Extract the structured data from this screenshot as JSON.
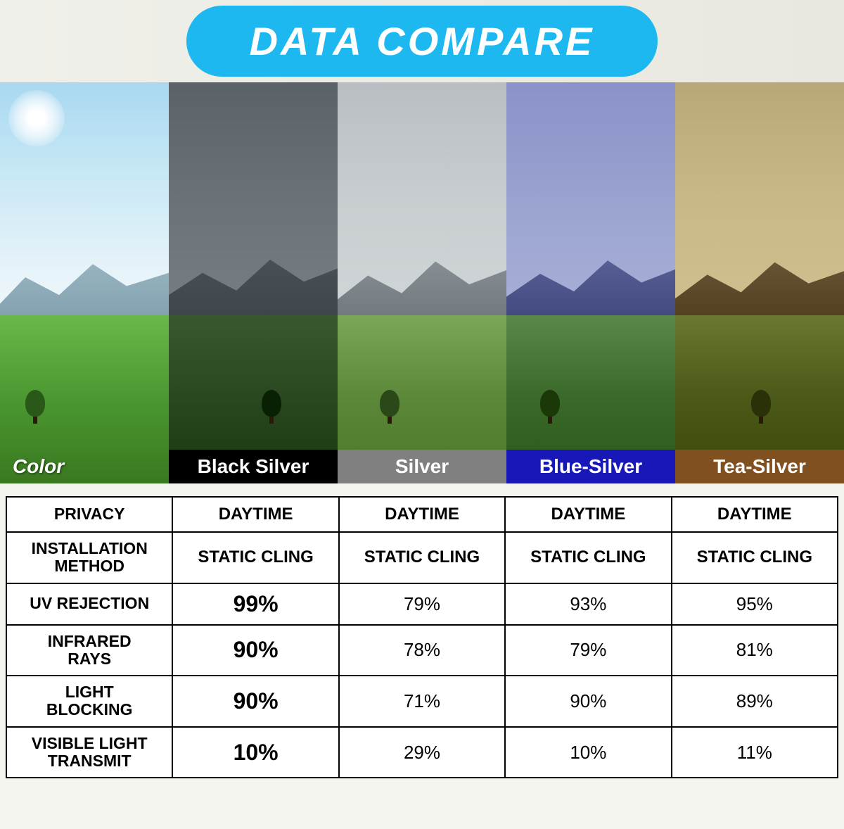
{
  "header": {
    "title": "DATA COMPARE",
    "pill_bg": "#1eb8f0",
    "pill_text_color": "#ffffff"
  },
  "swatches": [
    {
      "label": "Color",
      "label_bg": "transparent",
      "label_text_color": "#ffffff",
      "tint_overlay": "none"
    },
    {
      "label": "Black Silver",
      "label_bg": "#000000",
      "label_text_color": "#ffffff",
      "tint_overlay": "rgba(40,40,40,0.55)"
    },
    {
      "label": "Silver",
      "label_bg": "#808080",
      "label_text_color": "#ffffff",
      "tint_overlay": "rgba(160,160,160,0.35)"
    },
    {
      "label": "Blue-Silver",
      "label_bg": "#1818b8",
      "label_text_color": "#ffffff",
      "tint_overlay": "rgba(60,70,180,0.35)"
    },
    {
      "label": "Tea-Silver",
      "label_bg": "#805020",
      "label_text_color": "#ffffff",
      "tint_overlay": "rgba(150,110,50,0.40)"
    }
  ],
  "table": {
    "rows": [
      {
        "header": "PRIVACY",
        "cells": [
          "DAYTIME",
          "DAYTIME",
          "DAYTIME",
          "DAYTIME"
        ],
        "bold_first": false
      },
      {
        "header": "INSTALLATION METHOD",
        "header_two_line": true,
        "cells": [
          "STATIC CLING",
          "STATIC CLING",
          "STATIC CLING",
          "STATIC CLING"
        ],
        "bold_first": false
      },
      {
        "header": "UV REJECTION",
        "cells": [
          "99%",
          "79%",
          "93%",
          "95%"
        ],
        "bold_first": true
      },
      {
        "header": "INFRARED RAYS",
        "header_two_line": true,
        "cells": [
          "90%",
          "78%",
          "79%",
          "81%"
        ],
        "bold_first": true
      },
      {
        "header": "LIGHT BLOCKING",
        "header_two_line": true,
        "cells": [
          "90%",
          "71%",
          "90%",
          "89%"
        ],
        "bold_first": true
      },
      {
        "header": "VISIBLE LIGHT TRANSMIT",
        "header_two_line": true,
        "cells": [
          "10%",
          "29%",
          "10%",
          "11%"
        ],
        "bold_first": true
      }
    ],
    "column_widths": [
      "20%",
      "20%",
      "20%",
      "20%",
      "20%"
    ],
    "border_color": "#000000"
  }
}
